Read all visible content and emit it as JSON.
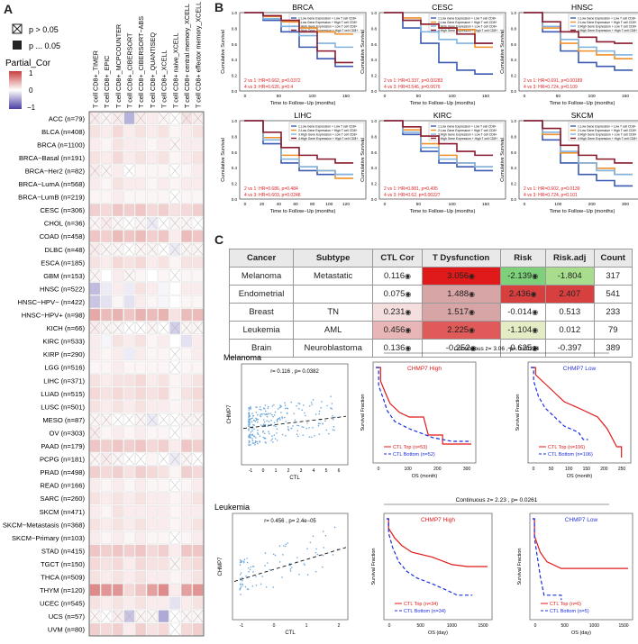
{
  "panelA": {
    "letter": "A",
    "legend": {
      "not_sig": "p > 0.05",
      "sig": "p ... 0.05",
      "color_title": "Partial_Cor",
      "ticks": [
        "1",
        "0",
        "−1"
      ],
      "colors": {
        "positive": "#c8403e",
        "negative": "#4b3fa2"
      }
    },
    "columns": [
      "T cell CD8+_TIMER",
      "T cell CD8+_EPIC",
      "T cell CD8+_MCPCOUNTER",
      "T cell CD8+_CIBERSORT",
      "T cell CD8+_CIBERSORT−ABS",
      "T cell CD8+_QUANTISEQ",
      "T cell CD8+_XCELL",
      "T cell CD8+ naive_XCELL",
      "T cell CD8+ central memory_XCELL",
      "T cell CD8+ effector memory_XCELL"
    ],
    "rows": [
      "ACC (n=79)",
      "BLCA (n=408)",
      "BRCA (n=1100)",
      "BRCA−Basal (n=191)",
      "BRCA−Her2 (n=82)",
      "BRCA−LumA (n=568)",
      "BRCA−LumB (n=219)",
      "CESC (n=306)",
      "CHOL (n=36)",
      "COAD (n=458)",
      "DLBC (n=48)",
      "ESCA (n=185)",
      "GBM (n=153)",
      "HNSC (n=522)",
      "HNSC−HPV− (n=422)",
      "HNSC−HPV+ (n=98)",
      "KICH (n=66)",
      "KIRC (n=533)",
      "KIRP (n=290)",
      "LGG (n=516)",
      "LIHC (n=371)",
      "LUAD (n=515)",
      "LUSC (n=501)",
      "MESO (n=87)",
      "OV (n=303)",
      "PAAD (n=179)",
      "PCPG (n=181)",
      "PRAD (n=498)",
      "READ (n=166)",
      "SARC (n=260)",
      "SKCM (n=471)",
      "SKCM−Metastasis (n=368)",
      "SKCM−Primary (n=103)",
      "STAD (n=415)",
      "TGCT (n=150)",
      "THCA (n=509)",
      "THYM (n=120)",
      "UCEC (n=545)",
      "UCS (n=57)",
      "UVM (n=80)"
    ],
    "heatmap": [
      [
        0.1,
        0.05,
        0.1,
        -0.4,
        0.1,
        0.1,
        0.05,
        0.0,
        0.15,
        0.1
      ],
      [
        0.15,
        0.1,
        0.2,
        0.1,
        0.15,
        0.1,
        0.15,
        0.05,
        0.1,
        0.15
      ],
      [
        0.1,
        0.05,
        0.15,
        0.1,
        0.1,
        0.05,
        0.1,
        0.05,
        0.1,
        0.1
      ],
      [
        0.15,
        0.1,
        0.2,
        0.1,
        0.15,
        0.1,
        0.15,
        0.05,
        0.1,
        0.15
      ],
      [
        0.1,
        0.05,
        0.1,
        0.0,
        0.05,
        0.05,
        0.05,
        0.0,
        0.05,
        0.1
      ],
      [
        0.1,
        0.05,
        0.15,
        0.1,
        0.1,
        0.05,
        0.1,
        0.05,
        0.1,
        0.1
      ],
      [
        0.05,
        0.05,
        0.1,
        0.05,
        0.05,
        0.05,
        0.05,
        0.0,
        0.05,
        0.05
      ],
      [
        0.25,
        0.2,
        0.3,
        0.25,
        0.3,
        0.2,
        0.25,
        0.15,
        0.2,
        0.25
      ],
      [
        0.05,
        0.1,
        0.05,
        0.0,
        0.05,
        -0.1,
        0.0,
        0.05,
        0.05,
        0.0
      ],
      [
        0.3,
        0.25,
        0.35,
        0.3,
        0.35,
        0.25,
        0.3,
        0.1,
        0.35,
        0.3
      ],
      [
        0.1,
        0.05,
        0.05,
        0.0,
        0.05,
        0.05,
        0.0,
        -0.1,
        0.05,
        0.05
      ],
      [
        0.15,
        0.1,
        0.2,
        0.15,
        0.2,
        0.1,
        0.15,
        0.05,
        0.15,
        0.15
      ],
      [
        0.05,
        0.0,
        0.1,
        0.05,
        0.05,
        0.0,
        0.05,
        0.0,
        0.05,
        0.05
      ],
      [
        -0.35,
        -0.1,
        0.1,
        -0.1,
        0.15,
        0.1,
        -0.05,
        0.0,
        0.1,
        0.1
      ],
      [
        -0.3,
        -0.15,
        0.05,
        -0.15,
        0.1,
        0.05,
        -0.05,
        0.0,
        0.05,
        0.05
      ],
      [
        0.45,
        0.35,
        0.4,
        0.3,
        0.4,
        0.35,
        0.4,
        0.15,
        0.35,
        0.35
      ],
      [
        0.1,
        0.05,
        0.05,
        0.0,
        0.0,
        0.05,
        0.0,
        -0.25,
        0.05,
        0.05
      ],
      [
        0.1,
        -0.05,
        0.15,
        0.1,
        0.15,
        0.05,
        0.1,
        0.0,
        -0.15,
        0.1
      ],
      [
        0.1,
        0.05,
        0.1,
        -0.1,
        0.1,
        0.05,
        0.05,
        0.0,
        0.05,
        0.1
      ],
      [
        0.05,
        0.05,
        0.1,
        0.05,
        0.05,
        0.05,
        0.05,
        0.0,
        0.05,
        0.05
      ],
      [
        0.15,
        0.1,
        0.15,
        0.15,
        0.2,
        0.1,
        0.15,
        0.05,
        0.1,
        0.15
      ],
      [
        0.2,
        0.15,
        0.2,
        0.15,
        0.2,
        0.15,
        0.2,
        0.05,
        0.15,
        0.2
      ],
      [
        0.15,
        0.1,
        0.15,
        0.1,
        0.15,
        0.1,
        0.1,
        0.05,
        0.1,
        0.15
      ],
      [
        0.05,
        0.05,
        0.0,
        0.0,
        0.05,
        -0.1,
        0.0,
        0.0,
        0.05,
        0.05
      ],
      [
        0.1,
        0.05,
        0.1,
        0.05,
        0.1,
        0.05,
        0.05,
        0.0,
        0.05,
        0.1
      ],
      [
        0.3,
        0.25,
        0.3,
        0.25,
        0.3,
        0.2,
        0.25,
        0.1,
        0.3,
        0.25
      ],
      [
        0.05,
        0.1,
        0.05,
        0.0,
        0.0,
        0.05,
        0.0,
        -0.1,
        0.05,
        0.0
      ],
      [
        0.25,
        0.2,
        0.25,
        0.15,
        0.25,
        0.2,
        0.15,
        0.05,
        0.25,
        0.2
      ],
      [
        0.1,
        0.05,
        0.1,
        0.05,
        0.1,
        0.05,
        0.05,
        0.0,
        0.05,
        0.1
      ],
      [
        0.15,
        0.1,
        0.15,
        0.1,
        0.15,
        0.1,
        0.1,
        0.05,
        0.1,
        0.15
      ],
      [
        0.1,
        0.05,
        0.15,
        0.1,
        0.1,
        0.1,
        0.1,
        0.05,
        0.1,
        0.1
      ],
      [
        0.15,
        0.1,
        0.15,
        0.1,
        0.15,
        0.1,
        0.1,
        0.05,
        0.1,
        0.15
      ],
      [
        0.1,
        0.05,
        0.1,
        0.05,
        0.1,
        0.05,
        0.05,
        0.0,
        0.05,
        0.1
      ],
      [
        0.3,
        0.25,
        0.3,
        0.25,
        0.3,
        0.2,
        0.25,
        0.1,
        0.3,
        0.3
      ],
      [
        0.2,
        0.15,
        0.2,
        0.1,
        0.2,
        0.15,
        0.15,
        0.05,
        0.15,
        0.2
      ],
      [
        0.15,
        0.1,
        0.15,
        0.1,
        0.15,
        0.1,
        0.1,
        0.05,
        0.1,
        0.15
      ],
      [
        0.6,
        0.55,
        0.55,
        0.2,
        0.3,
        0.5,
        0.6,
        0.1,
        0.5,
        0.55
      ],
      [
        0.15,
        0.1,
        0.15,
        0.1,
        0.15,
        0.1,
        0.1,
        -0.15,
        0.1,
        0.15
      ],
      [
        0.05,
        0.0,
        0.1,
        -0.3,
        0.05,
        0.05,
        -0.45,
        0.0,
        0.05,
        0.05
      ],
      [
        0.25,
        0.2,
        0.25,
        0.1,
        0.25,
        0.15,
        0.2,
        0.0,
        0.2,
        0.25
      ]
    ],
    "crossed_cells": [
      [
        0,
        0
      ],
      [
        0,
        1
      ],
      [
        0,
        2
      ],
      [
        0,
        4
      ],
      [
        0,
        6
      ],
      [
        0,
        7
      ],
      [
        0,
        8
      ],
      [
        0,
        9
      ],
      [
        2,
        7
      ],
      [
        4,
        0
      ],
      [
        4,
        1
      ],
      [
        4,
        3
      ],
      [
        4,
        7
      ],
      [
        6,
        7
      ],
      [
        8,
        0
      ],
      [
        8,
        1
      ],
      [
        8,
        2
      ],
      [
        8,
        3
      ],
      [
        8,
        4
      ],
      [
        8,
        5
      ],
      [
        8,
        6
      ],
      [
        8,
        7
      ],
      [
        8,
        8
      ],
      [
        8,
        9
      ],
      [
        10,
        0
      ],
      [
        10,
        1
      ],
      [
        10,
        2
      ],
      [
        10,
        3
      ],
      [
        10,
        4
      ],
      [
        10,
        5
      ],
      [
        10,
        6
      ],
      [
        10,
        7
      ],
      [
        10,
        8
      ],
      [
        10,
        9
      ],
      [
        12,
        0
      ],
      [
        12,
        3
      ],
      [
        12,
        7
      ],
      [
        16,
        0
      ],
      [
        16,
        1
      ],
      [
        16,
        2
      ],
      [
        16,
        3
      ],
      [
        16,
        4
      ],
      [
        16,
        5
      ],
      [
        16,
        6
      ],
      [
        16,
        7
      ],
      [
        16,
        8
      ],
      [
        16,
        9
      ],
      [
        18,
        7
      ],
      [
        19,
        7
      ],
      [
        23,
        0
      ],
      [
        23,
        1
      ],
      [
        23,
        2
      ],
      [
        23,
        3
      ],
      [
        23,
        4
      ],
      [
        23,
        5
      ],
      [
        23,
        6
      ],
      [
        23,
        7
      ],
      [
        23,
        8
      ],
      [
        23,
        9
      ],
      [
        24,
        0
      ],
      [
        24,
        7
      ],
      [
        26,
        0
      ],
      [
        26,
        1
      ],
      [
        26,
        2
      ],
      [
        26,
        3
      ],
      [
        26,
        4
      ],
      [
        26,
        6
      ],
      [
        26,
        7
      ],
      [
        26,
        8
      ],
      [
        26,
        9
      ],
      [
        28,
        7
      ],
      [
        32,
        7
      ],
      [
        34,
        7
      ],
      [
        38,
        0
      ],
      [
        38,
        1
      ],
      [
        38,
        2
      ],
      [
        38,
        3
      ],
      [
        38,
        4
      ],
      [
        38,
        5
      ],
      [
        38,
        7
      ],
      [
        38,
        8
      ],
      [
        38,
        9
      ],
      [
        39,
        7
      ]
    ]
  },
  "panelB": {
    "letter": "B",
    "ylabel": "Cumulative Survival",
    "xlabel": "Time to Follow−Up (months)",
    "legend": [
      "1:Low Gene Expression + Low T cell CD8+",
      "2:Low Gene Expression + High T cell CD8+",
      "3:High Gene Expression + Low T cell CD8+",
      "4:High Gene Expression + High T cell CD8+"
    ],
    "series_colors": [
      "#3b5ab0",
      "#f0902a",
      "#7fb2e0",
      "#8a1a2e"
    ],
    "plots": [
      {
        "title": "BRCA",
        "stat1": "2 vs 1: HR=0.662, p=0.0372",
        "stat2": "4 vs 3: HR=0.626, p=0.4",
        "xticks": [
          "0",
          "50",
          "100",
          "150"
        ]
      },
      {
        "title": "CESC",
        "stat1": "2 vs 1: HR=0.337, p=0.00283",
        "stat2": "4 vs 3: HR=0.546, p=0.0676",
        "xticks": [
          "0",
          "50",
          "100",
          "150"
        ]
      },
      {
        "title": "HNSC",
        "stat1": "2 vs 1: HR=0.691, p=0.00189",
        "stat2": "4 vs 3: HR=0.724, p=0.109",
        "xticks": [
          "0",
          "50",
          "100",
          "150"
        ]
      },
      {
        "title": "LIHC",
        "stat1": "2 vs 1: HR=0.686, p=0.484",
        "stat2": "4 vs 3: HR=0.603, p=0.0248",
        "xticks": [
          "0",
          "20",
          "40",
          "60",
          "80",
          "100",
          "120"
        ]
      },
      {
        "title": "KIRC",
        "stat1": "2 vs 1: HR=0.881, p=0.495",
        "stat2": "4 vs 3: HR=0.62, p=0.00227",
        "xticks": [
          "0",
          "50",
          "100",
          "150"
        ]
      },
      {
        "title": "SKCM",
        "stat1": "2 vs 1: HR=0.602, p=0.0139",
        "stat2": "4 vs 3: HR=0.724, p=0.101",
        "xticks": [
          "0",
          "100",
          "200",
          "300"
        ]
      }
    ]
  },
  "panelC": {
    "letter": "C",
    "table": {
      "headers": [
        "Cancer",
        "Subtype",
        "CTL Cor",
        "T Dysfunction",
        "Risk",
        "Risk.adj",
        "Count"
      ],
      "rows": [
        {
          "cancer": "Melanoma",
          "subtype": "Metastatic",
          "ctl": "0.116",
          "tdys": "3.056",
          "risk": "-2.139",
          "riskadj": "-1.804",
          "count": "317",
          "tdys_color": "#e01a1a",
          "risk_color": "#7ed07a",
          "riskadj_color": "#a8dd8e",
          "ctl_color": "#ffffff"
        },
        {
          "cancer": "Endometrial",
          "subtype": "",
          "ctl": "0.075",
          "tdys": "1.488",
          "risk": "2.436",
          "riskadj": "2.407",
          "count": "541",
          "tdys_color": "#d7a5a5",
          "risk_color": "#d84040",
          "riskadj_color": "#d84040",
          "ctl_color": "#ffffff"
        },
        {
          "cancer": "Breast",
          "subtype": "TN",
          "ctl": "0.231",
          "tdys": "1.517",
          "risk": "-0.014",
          "riskadj": "0.513",
          "count": "233",
          "tdys_color": "#d7a5a5",
          "risk_color": "#ffffff",
          "riskadj_color": "#ffffff",
          "ctl_color": "#f5dede"
        },
        {
          "cancer": "Leukemia",
          "subtype": "AML",
          "ctl": "0.456",
          "tdys": "2.225",
          "risk": "-1.104",
          "riskadj": "0.012",
          "count": "79",
          "tdys_color": "#e05a5a",
          "risk_color": "#e3ecc4",
          "riskadj_color": "#ffffff",
          "ctl_color": "#e8b6b6"
        },
        {
          "cancer": "Brain",
          "subtype": "Neuroblastoma",
          "ctl": "0.136",
          "tdys": "-0.252",
          "risk": "-0.625",
          "riskadj": "-0.397",
          "count": "389",
          "tdys_color": "#ffffff",
          "risk_color": "#ffffff",
          "riskadj_color": "#ffffff",
          "ctl_color": "#ffffff"
        }
      ]
    },
    "melanoma": {
      "label": "Melanoma",
      "scatter_stat": "r= 0.116 , p= 0.0382",
      "ylabel": "CHMP7",
      "xlabel": "CTL",
      "xticks": [
        "-1",
        "0",
        "1",
        "2",
        "3",
        "4",
        "5",
        "6"
      ],
      "continuous": "Continuous z= 3.06 , p= 0.00224",
      "km_high": {
        "title": "CHMP7 High",
        "l1": "CTL Top (n=53)",
        "l2": "CTL Bottom (n=52)",
        "xticks": [
          "0",
          "100",
          "200",
          "300"
        ]
      },
      "km_low": {
        "title": "CHMP7 Low",
        "l1": "CTL Top (n=106)",
        "l2": "CTL Bottom (n=106)",
        "xticks": [
          "0",
          "50",
          "100",
          "150",
          "200",
          "250"
        ]
      },
      "km_xlabel": "OS (month)",
      "km_ylabel": "Survival Fraction"
    },
    "leukemia": {
      "label": "Leukemia",
      "scatter_stat": "r= 0.456 , p= 2.4e−05",
      "ylabel": "CHMP7",
      "xlabel": "CTL",
      "xticks": [
        "-1",
        "0",
        "1",
        "2"
      ],
      "continuous": "Continuous z= 2.23 , p= 0.0261",
      "km_high": {
        "title": "CHMP7 High",
        "l1": "CTL Top (n=34)",
        "l2": "CTL Bottom (n=34)",
        "xticks": [
          "0",
          "500",
          "1000",
          "1500"
        ]
      },
      "km_low": {
        "title": "CHMP7 Low",
        "l1": "CTL Top (n=6)",
        "l2": "CTL Bottom (n=5)",
        "xticks": [
          "0",
          "500",
          "1000",
          "1500"
        ]
      },
      "km_xlabel": "OS (day)",
      "km_ylabel": "Survival Fraction"
    },
    "colors": {
      "top": "#e01818",
      "bottom": "#1a2ee0",
      "title_high": "#e01818",
      "title_low": "#2a3ae0",
      "scatter": "#6fa8dc"
    }
  }
}
